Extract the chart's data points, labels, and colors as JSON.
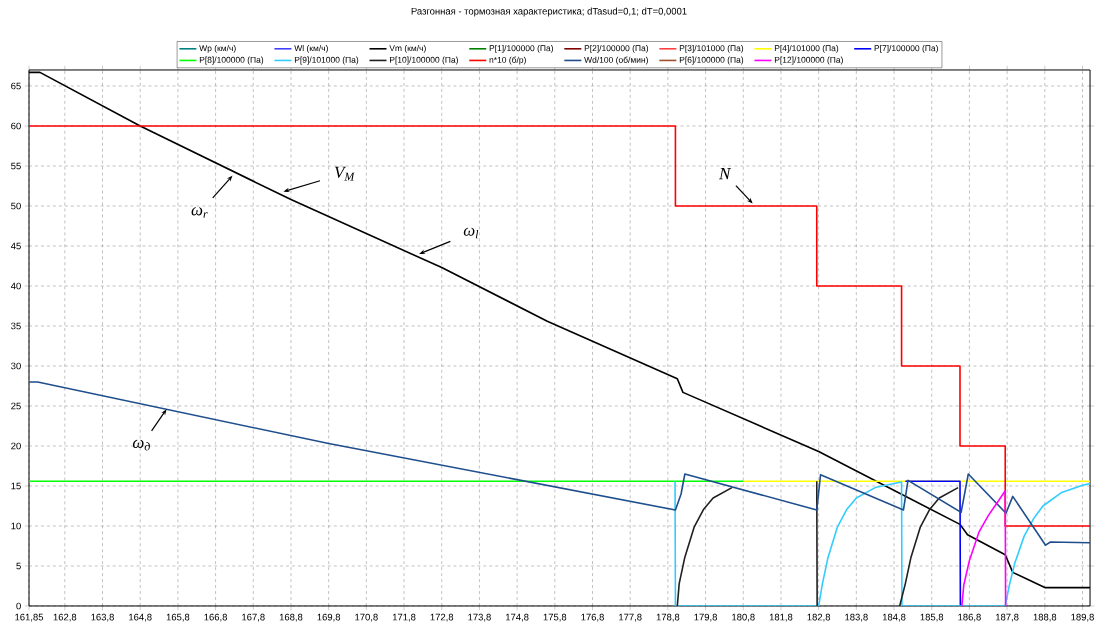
{
  "chart_data": {
    "type": "line",
    "title": "Разгонная - тормозная характеристика; dTasud=0,1; dT=0,0001",
    "xlim": [
      161.85,
      190
    ],
    "ylim": [
      0,
      67
    ],
    "xticks": [
      {
        "value": 161.85,
        "label": "161,85"
      },
      {
        "value": 162.8,
        "label": "162,8"
      },
      {
        "value": 163.8,
        "label": "163,8"
      },
      {
        "value": 164.8,
        "label": "164,8"
      },
      {
        "value": 165.8,
        "label": "165,8"
      },
      {
        "value": 166.8,
        "label": "166,8"
      },
      {
        "value": 167.8,
        "label": "167,8"
      },
      {
        "value": 168.8,
        "label": "168,8"
      },
      {
        "value": 169.8,
        "label": "169,8"
      },
      {
        "value": 170.8,
        "label": "170,8"
      },
      {
        "value": 171.8,
        "label": "171,8"
      },
      {
        "value": 172.8,
        "label": "172,8"
      },
      {
        "value": 173.8,
        "label": "173,8"
      },
      {
        "value": 174.8,
        "label": "174,8"
      },
      {
        "value": 175.8,
        "label": "175,8"
      },
      {
        "value": 176.8,
        "label": "176,8"
      },
      {
        "value": 177.8,
        "label": "177,8"
      },
      {
        "value": 178.8,
        "label": "178,8"
      },
      {
        "value": 179.8,
        "label": "179,8"
      },
      {
        "value": 180.8,
        "label": "180,8"
      },
      {
        "value": 181.8,
        "label": "181,8"
      },
      {
        "value": 182.8,
        "label": "182,8"
      },
      {
        "value": 183.8,
        "label": "183,8"
      },
      {
        "value": 184.8,
        "label": "184,8"
      },
      {
        "value": 185.8,
        "label": "185,8"
      },
      {
        "value": 186.8,
        "label": "186,8"
      },
      {
        "value": 187.8,
        "label": "187,8"
      },
      {
        "value": 188.8,
        "label": "188,8"
      },
      {
        "value": 189.8,
        "label": "189,8"
      }
    ],
    "yticks": [
      0,
      5,
      10,
      15,
      20,
      25,
      30,
      35,
      40,
      45,
      50,
      55,
      60,
      65
    ],
    "grid": true,
    "legend": "top",
    "series": [
      {
        "name": "Wp (км/ч)",
        "color": "#008080",
        "values": [
          null
        ]
      },
      {
        "name": "Wl (км/ч)",
        "color": "#4040ff",
        "values": [
          null
        ]
      },
      {
        "name": "Vm (км/ч)",
        "color": "#000000",
        "x": [
          161.85,
          162.14,
          164.8,
          168.8,
          172.8,
          175.6,
          179.05,
          179.2,
          182.8,
          186.55,
          186.75,
          187.75,
          187.95,
          188.8,
          190
        ],
        "values": [
          66.7,
          66.7,
          60,
          50.8,
          42.3,
          35.6,
          28.4,
          26.7,
          19.3,
          10.2,
          8.9,
          6.4,
          4.2,
          2.3,
          2.3
        ]
      },
      {
        "name": "P[1]/100000 (Па)",
        "color": "#008000",
        "values": [
          null
        ]
      },
      {
        "name": "P[2]/100000 (Па)",
        "color": "#800000",
        "values": [
          null
        ]
      },
      {
        "name": "P[3]/101000 (Па)",
        "color": "#ff4040",
        "values": [
          null
        ]
      },
      {
        "name": "P[4]/101000 (Па)",
        "color": "#ffff00",
        "x": [
          180.8,
          190
        ],
        "values": [
          15.6,
          15.6
        ]
      },
      {
        "name": "P[7]/100000 (Па)",
        "color": "#0000ff",
        "x": [
          185.1,
          186.55,
          186.56
        ],
        "values": [
          15.6,
          15.6,
          0
        ]
      },
      {
        "name": "P[8]/100000 (Па)",
        "color": "#00ff00",
        "x": [
          161.85,
          180.8
        ],
        "values": [
          15.6,
          15.6
        ]
      },
      {
        "name": "P[9]/101000 (Па)",
        "color": "#33ccff",
        "x": [
          178.99,
          179.0,
          182.8,
          182.9,
          183.05,
          183.3,
          183.55,
          183.8,
          184.3,
          184.8,
          185.0,
          185.01,
          187.75,
          187.85,
          188.0,
          188.25,
          188.5,
          188.75,
          189.25,
          189.8,
          190
        ],
        "values": [
          15.6,
          0,
          0,
          2.8,
          6.1,
          9.9,
          12.1,
          13.5,
          14.8,
          15.3,
          15.5,
          0,
          0,
          2.4,
          5.3,
          8.7,
          10.9,
          12.5,
          14.2,
          15.1,
          15.3
        ]
      },
      {
        "name": "P[10]/100000 (Па)",
        "color": "#202020",
        "x": [
          179.05,
          179.1,
          179.25,
          179.5,
          179.75,
          180.0,
          180.5,
          181.0,
          182.75,
          182.76,
          182.77,
          184.95,
          185.1,
          185.25,
          185.5,
          185.75,
          186.0,
          186.5
        ],
        "values": [
          0,
          2.8,
          6.1,
          9.9,
          12.1,
          13.5,
          14.8,
          null,
          15.6,
          0,
          null,
          0,
          2.8,
          6.1,
          9.9,
          12.1,
          13.5,
          14.8
        ]
      },
      {
        "name": "n*10 (б/р)",
        "color": "#ff0000",
        "type": "step",
        "x": [
          161.85,
          179.0,
          182.75,
          185.0,
          186.55,
          187.75,
          190
        ],
        "values": [
          60,
          50,
          40,
          30,
          20,
          10,
          10
        ]
      },
      {
        "name": "Wd/100 (об/мин)",
        "color": "#1f4e8c",
        "x": [
          161.85,
          162.08,
          169.8,
          179.0,
          179.15,
          179.25,
          182.75,
          182.85,
          185.05,
          185.17,
          186.58,
          186.77,
          187.77,
          187.95,
          188.82,
          188.95,
          190
        ],
        "values": [
          28,
          28,
          20.3,
          12.0,
          14.0,
          16.5,
          12.0,
          16.4,
          12.0,
          15.7,
          11.7,
          16.5,
          11.6,
          13.7,
          7.6,
          8.0,
          7.9
        ]
      },
      {
        "name": "P[6]/100000 (Па)",
        "color": "#a0522d",
        "values": [
          null
        ]
      },
      {
        "name": "P[12]/100000 (Па)",
        "color": "#ff00ff",
        "x": [
          186.6,
          186.65,
          186.8,
          187.05,
          187.3,
          187.55,
          187.75,
          187.76
        ],
        "values": [
          0,
          2.6,
          5.7,
          9.2,
          11.3,
          13.0,
          14.4,
          0
        ]
      }
    ],
    "annotations": [
      {
        "text": "ω$_{r}$",
        "x": 167.25,
        "y": 53.8
      },
      {
        "text": "V$_{М}$",
        "x": 168.6,
        "y": 51.8
      },
      {
        "text": "ω$_{l}$",
        "x": 172.2,
        "y": 44.0
      },
      {
        "text": "N",
        "x": 181.05,
        "y": 50.3
      },
      {
        "text": "ω$_{д}$",
        "x": 165.5,
        "y": 24.6
      }
    ]
  }
}
